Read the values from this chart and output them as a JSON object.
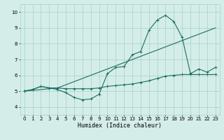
{
  "xlabel": "Humidex (Indice chaleur)",
  "xlim": [
    -0.5,
    23.5
  ],
  "ylim": [
    3.5,
    10.5
  ],
  "yticks": [
    4,
    5,
    6,
    7,
    8,
    9,
    10
  ],
  "xticks": [
    0,
    1,
    2,
    3,
    4,
    5,
    6,
    7,
    8,
    9,
    10,
    11,
    12,
    13,
    14,
    15,
    16,
    17,
    18,
    19,
    20,
    21,
    22,
    23
  ],
  "bg_color": "#d4ede8",
  "grid_color": "#a8cfc8",
  "line_color": "#1a6e60",
  "line1_x": [
    0,
    1,
    2,
    3,
    4,
    5,
    6,
    7,
    8,
    9,
    10,
    11,
    12,
    13,
    14,
    15,
    16,
    17,
    18,
    19,
    20,
    21,
    22,
    23
  ],
  "line1_y": [
    5.0,
    5.1,
    5.3,
    5.2,
    5.1,
    4.9,
    4.6,
    4.45,
    4.5,
    4.8,
    6.1,
    6.5,
    6.55,
    7.3,
    7.5,
    8.85,
    9.5,
    9.8,
    9.4,
    8.4,
    6.1,
    6.4,
    6.2,
    6.5
  ],
  "line2_x": [
    0,
    1,
    2,
    3,
    4,
    5,
    6,
    7,
    8,
    9,
    10,
    11,
    12,
    13,
    14,
    15,
    16,
    17,
    18,
    19,
    20,
    21,
    22,
    23
  ],
  "line2_y": [
    5.0,
    5.1,
    5.3,
    5.2,
    5.2,
    5.15,
    5.15,
    5.15,
    5.15,
    5.2,
    5.3,
    5.35,
    5.4,
    5.45,
    5.55,
    5.65,
    5.8,
    5.95,
    6.0,
    6.05,
    6.05,
    6.05,
    6.05,
    6.05
  ],
  "line3_x": [
    0,
    4,
    23
  ],
  "line3_y": [
    5.0,
    5.2,
    9.0
  ],
  "marker": "+"
}
